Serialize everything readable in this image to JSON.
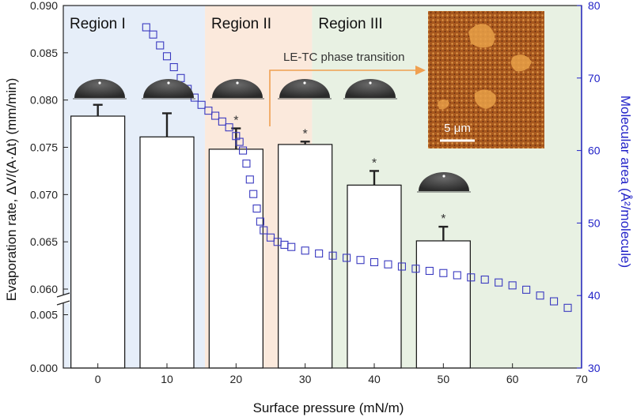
{
  "chart_data": {
    "type": "bar",
    "xlabel": "Surface pressure (mN/m)",
    "ylabel": "Evaporation rate, ΔV/(A·Δt) (mm/min)",
    "y2label": "Molecular area (Å²/molecule)",
    "x_ticks": [
      "0",
      "10",
      "20",
      "30",
      "40",
      "50",
      "60",
      "70"
    ],
    "xlim": [
      -5,
      70
    ],
    "y_upper_ticks": [
      "0.060",
      "0.065",
      "0.070",
      "0.075",
      "0.080",
      "0.085",
      "0.090"
    ],
    "y_upper_range": [
      0.0595,
      0.09
    ],
    "y_lower_ticks": [
      "0.000",
      "0.005"
    ],
    "y_lower_range": [
      0.0,
      0.006
    ],
    "y2_ticks": [
      "30",
      "40",
      "50",
      "60",
      "70",
      "80"
    ],
    "y2lim": [
      30,
      80
    ],
    "regions": [
      {
        "label": "Region I",
        "from": -5,
        "to": 15.5,
        "color": "#e6eef9"
      },
      {
        "label": "Region II",
        "from": 15.5,
        "to": 31,
        "color": "#fbe9dc"
      },
      {
        "label": "Region III",
        "from": 31,
        "to": 70,
        "color": "#e8f1e3"
      }
    ],
    "bar_series": {
      "name": "Evaporation rate",
      "bars": [
        {
          "x": 0,
          "value": 0.0783,
          "error": 0.0012,
          "star": false
        },
        {
          "x": 10,
          "value": 0.0761,
          "error": 0.0025,
          "star": false
        },
        {
          "x": 20,
          "value": 0.0748,
          "error": 0.0022,
          "star": true
        },
        {
          "x": 30,
          "value": 0.0753,
          "error": 0.0003,
          "star": true
        },
        {
          "x": 40,
          "value": 0.071,
          "error": 0.0015,
          "star": true
        },
        {
          "x": 50,
          "value": 0.0651,
          "error": 0.0015,
          "star": true
        }
      ]
    },
    "isotherm_series": {
      "name": "Molecular area",
      "x": [
        7,
        8,
        9,
        10,
        11,
        12,
        13,
        14,
        15,
        16,
        17,
        18,
        19,
        20,
        20.5,
        21,
        21.5,
        22,
        22.5,
        23,
        23.5,
        24,
        25,
        26,
        27,
        28,
        30,
        32,
        34,
        36,
        38,
        40,
        42,
        44,
        46,
        48,
        50,
        52,
        54,
        56,
        58,
        60,
        62,
        64,
        66,
        68
      ],
      "y": [
        77,
        76,
        74.5,
        73,
        71.5,
        70,
        68.5,
        67.3,
        66.3,
        65.5,
        64.8,
        64,
        63.2,
        62,
        61.2,
        60,
        58.2,
        56,
        54,
        52,
        50.2,
        49,
        48,
        47.4,
        47,
        46.7,
        46.2,
        45.8,
        45.5,
        45.2,
        44.9,
        44.6,
        44.3,
        44,
        43.7,
        43.4,
        43.1,
        42.8,
        42.5,
        42.2,
        41.8,
        41.4,
        40.8,
        40,
        39.2,
        38.3
      ]
    },
    "annotations": {
      "transition_label": "LE-TC phase transition",
      "scale_bar": "5 μm",
      "star_symbol": "*"
    },
    "colors": {
      "bar_fill": "#ffffff",
      "bar_edge": "#111111",
      "isotherm": "#3a3ac0",
      "arrow": "#f0a050",
      "right_axis": "#2222c8"
    }
  }
}
